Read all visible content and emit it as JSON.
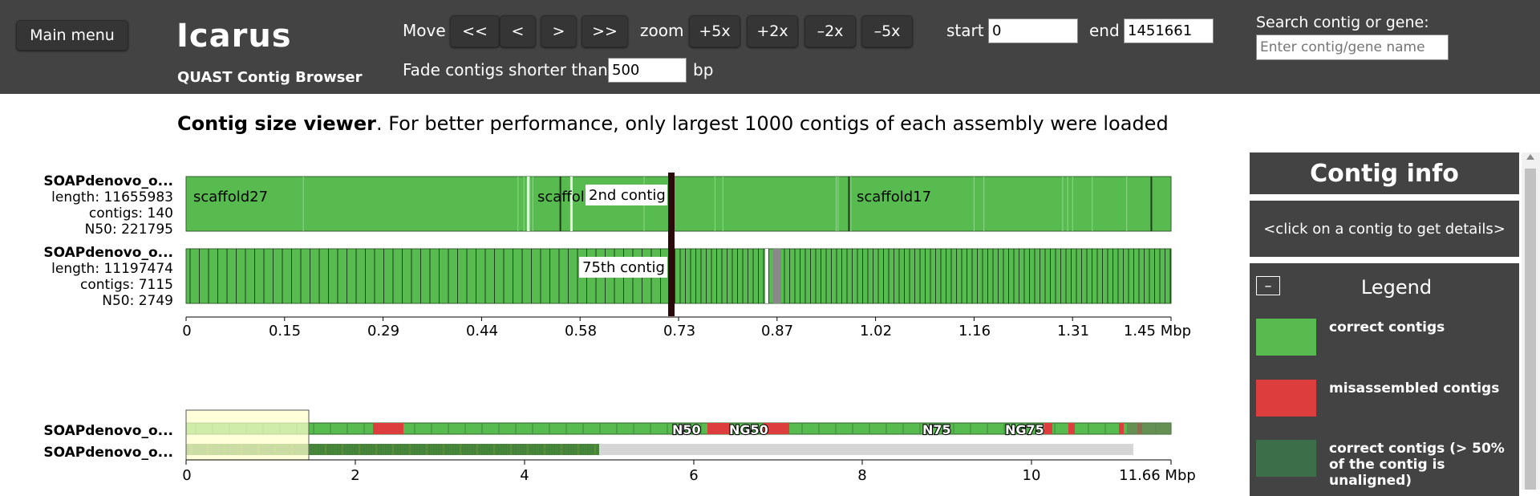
{
  "header": {
    "main_menu": "Main menu",
    "app_title": "Icarus",
    "app_subtitle": "QUAST Contig Browser",
    "move_label": "Move",
    "move_buttons": [
      "<<",
      "<",
      ">",
      ">>"
    ],
    "zoom_label": "zoom",
    "zoom_buttons": [
      "+5x",
      "+2x",
      "–2x",
      "–5x"
    ],
    "start_label": "start",
    "start_value": "0",
    "end_label": "end",
    "end_value": "1451661",
    "search_label": "Search contig or gene:",
    "search_placeholder": "Enter contig/gene name",
    "fade_label": "Fade contigs shorter than",
    "fade_value": "500",
    "fade_unit": "bp"
  },
  "notice": {
    "bold": "Contig size viewer",
    "rest": ". For better performance, only largest 1000 contigs of each assembly were loaded"
  },
  "assemblies": [
    {
      "name": "SOAPdenovo_o...",
      "length": "length: 11655983",
      "contigs": "contigs: 140",
      "n50": "N50: 221795"
    },
    {
      "name": "SOAPdenovo_o...",
      "length": "length: 11197474",
      "contigs": "contigs: 7115",
      "n50": "N50: 2749"
    }
  ],
  "detail_labels": {
    "contig_a": "scaffold27",
    "contig_b": "scaffol",
    "contig_c": "scaffold17",
    "tooltip_1": "2nd contig",
    "tooltip_2": "75th contig"
  },
  "detail_axis": {
    "ticks": [
      "0",
      "0.15",
      "0.29",
      "0.44",
      "0.58",
      "0.73",
      "0.87",
      "1.02",
      "1.16",
      "1.31",
      "1.45 Mbp"
    ]
  },
  "overview": {
    "names": [
      "SOAPdenovo_o...",
      "SOAPdenovo_o..."
    ],
    "markers": [
      "N50",
      "NG50",
      "N75",
      "NG75"
    ],
    "ticks": [
      "0",
      "2",
      "4",
      "6",
      "8",
      "10",
      "11.66 Mbp"
    ]
  },
  "sidebar": {
    "contig_info_title": "Contig info",
    "contig_info_hint": "<click on a contig to get details>",
    "legend_title": "Legend",
    "collapse_symbol": "–",
    "legend": [
      {
        "label": "correct contigs",
        "color": "#57bb4f"
      },
      {
        "label": "misassembled contigs",
        "color": "#dd3d3d"
      },
      {
        "label": "correct contigs (> 50% of the contig is unaligned)",
        "color": "#3d6e4a"
      }
    ]
  },
  "colors": {
    "header_bg": "#434343",
    "correct": "#57bb4f",
    "misassembled": "#dd3d3d",
    "unaligned": "#3d6e4a",
    "viewport": "#ffffcc"
  }
}
